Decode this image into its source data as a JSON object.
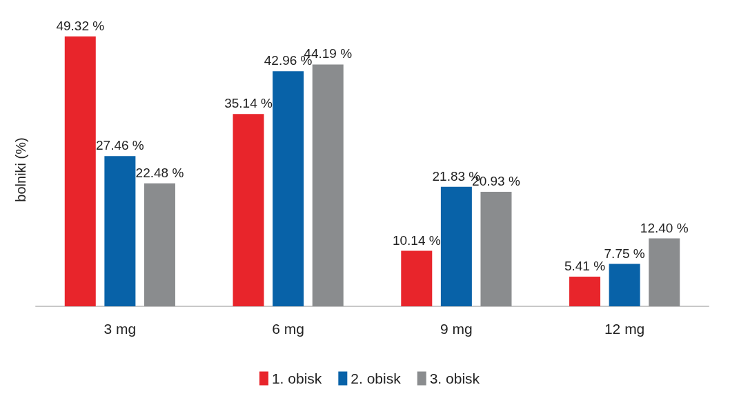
{
  "chart_data": {
    "type": "bar",
    "ylabel": "bolniki (%)",
    "categories": [
      "3 mg",
      "6 mg",
      "9 mg",
      "12 mg"
    ],
    "series": [
      {
        "name": "1. obisk",
        "color": "#e8252b",
        "values": [
          49.32,
          35.14,
          10.14,
          5.41
        ],
        "value_labels": [
          "49.32 %",
          "35.14 %",
          "10.14 %",
          "5.41 %"
        ]
      },
      {
        "name": "2. obisk",
        "color": "#0862a8",
        "values": [
          27.46,
          42.96,
          21.83,
          7.75
        ],
        "value_labels": [
          "27.46 %",
          "42.96 %",
          "21.83 %",
          "7.75 %"
        ]
      },
      {
        "name": "3. obisk",
        "color": "#8a8c8e",
        "values": [
          22.48,
          44.19,
          20.93,
          12.4
        ],
        "value_labels": [
          "22.48 %",
          "44.19 %",
          "20.93 %",
          "12.40 %"
        ]
      }
    ],
    "grid": false,
    "legend": "bottom"
  }
}
